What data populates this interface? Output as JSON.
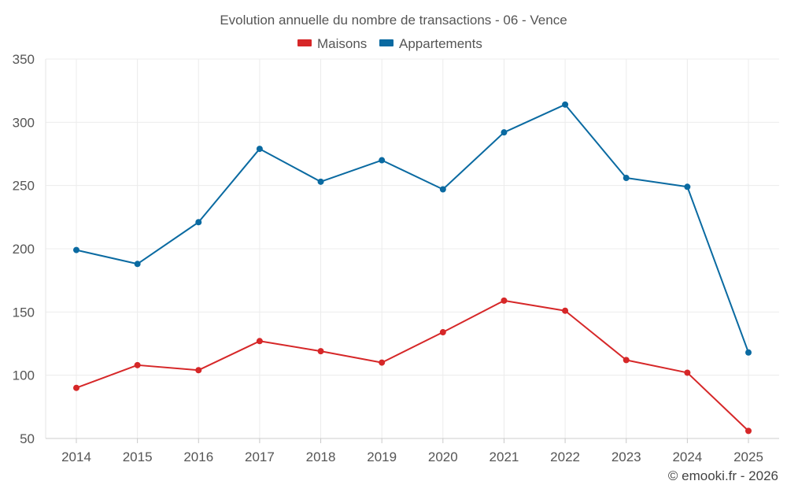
{
  "chart_data": {
    "type": "line",
    "title": "Evolution annuelle du nombre de transactions - 06 - Vence",
    "categories": [
      "2014",
      "2015",
      "2016",
      "2017",
      "2018",
      "2019",
      "2020",
      "2021",
      "2022",
      "2023",
      "2024",
      "2025"
    ],
    "series": [
      {
        "name": "Maisons",
        "color": "#d62728",
        "values": [
          90,
          108,
          104,
          127,
          119,
          110,
          134,
          159,
          151,
          112,
          102,
          56
        ]
      },
      {
        "name": "Appartements",
        "color": "#0a6aa1",
        "values": [
          199,
          188,
          221,
          279,
          253,
          270,
          247,
          292,
          314,
          256,
          249,
          118
        ]
      }
    ],
    "ylim": [
      50,
      350
    ],
    "yticks": [
      50,
      100,
      150,
      200,
      250,
      300,
      350
    ],
    "grid": true,
    "legend": "top-center",
    "xlabel": "",
    "ylabel": ""
  },
  "footer": {
    "credit": "© emooki.fr - 2026"
  }
}
